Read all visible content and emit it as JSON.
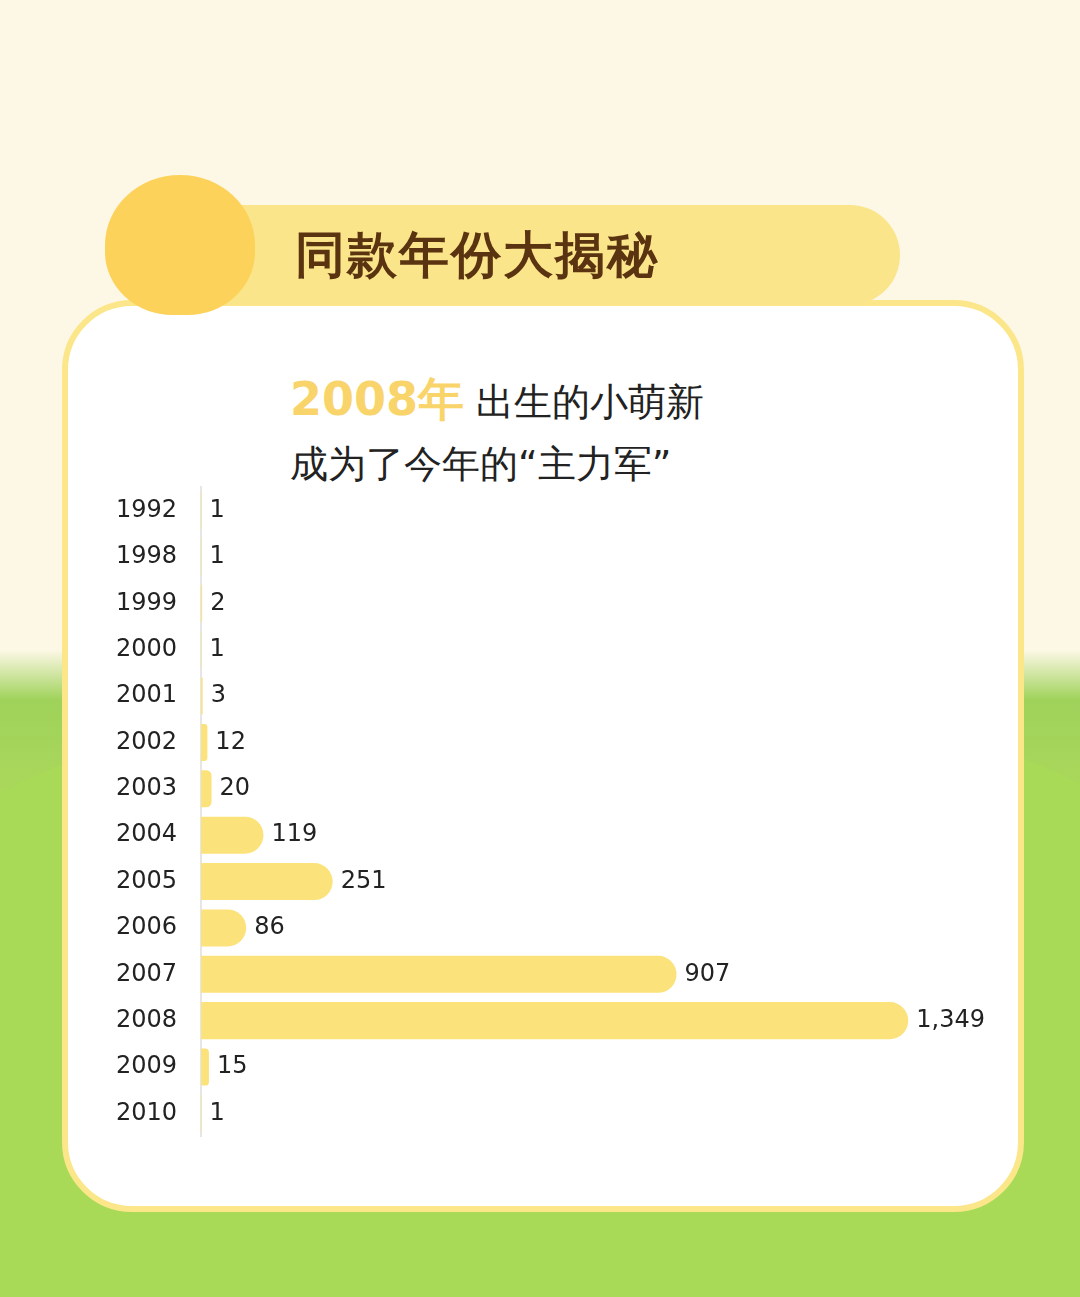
{
  "chart_data": {
    "type": "bar",
    "orientation": "horizontal",
    "title": "同款年份大揭秘",
    "subtitle": "2008年 出生的小萌新\n成为了今年的“主力军”",
    "categories": [
      "1992",
      "1998",
      "1999",
      "2000",
      "2001",
      "2002",
      "2003",
      "2004",
      "2005",
      "2006",
      "2007",
      "2008",
      "2009",
      "2010"
    ],
    "values": [
      1,
      1,
      2,
      1,
      3,
      12,
      20,
      119,
      251,
      86,
      907,
      1349,
      15,
      1
    ],
    "value_labels": [
      "1",
      "1",
      "2",
      "1",
      "3",
      "12",
      "20",
      "119",
      "251",
      "86",
      "907",
      "1,349",
      "15",
      "1"
    ],
    "color": "#fbe27a",
    "data_labels": true,
    "grid": false,
    "tick_labels": "y"
  }
}
